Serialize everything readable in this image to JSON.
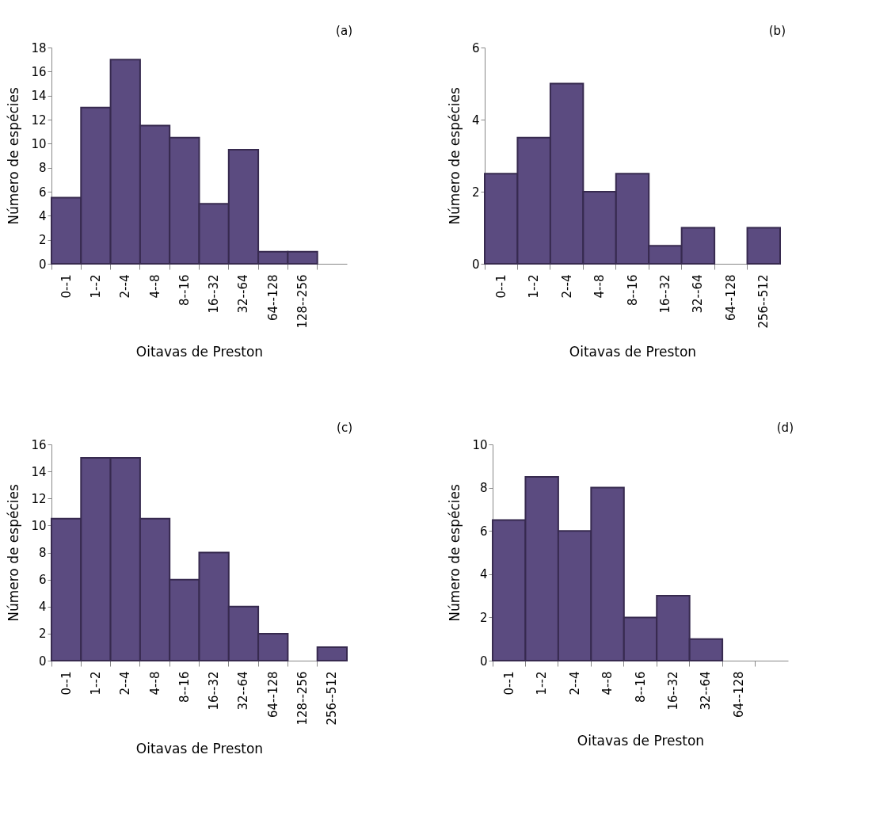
{
  "chart_data": [
    {
      "type": "bar",
      "annotations": [
        "(a)"
      ],
      "xlabel": "Oitavas de Preston",
      "ylabel": "Número de espécies",
      "categories": [
        "0--1",
        "1--2",
        "2--4",
        "4--8",
        "8--16",
        "16--32",
        "32--64",
        "64--128",
        "128--256",
        null
      ],
      "series": [
        {
          "color": "#5b4b80",
          "values": [
            5.5,
            13,
            17,
            11.5,
            10.5,
            5,
            9.5,
            1,
            1,
            null
          ]
        }
      ],
      "ylim": [
        0,
        18
      ],
      "yticks": [
        0,
        2,
        4,
        6,
        8,
        10,
        12,
        14,
        16,
        18
      ],
      "grid": false
    },
    {
      "type": "bar",
      "annotations": [
        "(b)"
      ],
      "xlabel": "Oitavas de Preston",
      "ylabel": "Número de espécies",
      "categories": [
        "0--1",
        "1--2",
        "2--4",
        "4--8",
        "8--16",
        "16--32",
        "32--64",
        "64--128",
        "256--512"
      ],
      "series": [
        {
          "color": "#5b4b80",
          "values": [
            2.5,
            3.5,
            5,
            2,
            2.5,
            0.5,
            1,
            null,
            1
          ]
        }
      ],
      "ylim": [
        0,
        6
      ],
      "yticks": [
        0,
        2,
        4,
        6
      ],
      "grid": false
    },
    {
      "type": "bar",
      "annotations": [
        "(c)"
      ],
      "xlabel": "Oitavas de Preston",
      "ylabel": "Número de espécies",
      "categories": [
        "0--1",
        "1--2",
        "2--4",
        "4--8",
        "8--16",
        "16--32",
        "32--64",
        "64--128",
        "128--256",
        "256--512"
      ],
      "series": [
        {
          "color": "#5b4b80",
          "values": [
            10.5,
            15,
            15,
            10.5,
            6,
            8,
            4,
            2,
            null,
            1
          ]
        }
      ],
      "ylim": [
        0,
        16
      ],
      "yticks": [
        0,
        2,
        4,
        6,
        8,
        10,
        12,
        14,
        16
      ],
      "grid": false
    },
    {
      "type": "bar",
      "annotations": [
        "(d)"
      ],
      "xlabel": "Oitavas de Preston",
      "ylabel": "Número de espécies",
      "categories": [
        "0--1",
        "1--2",
        "2--4",
        "4--8",
        "8--16",
        "16--32",
        "32--64",
        "64--128",
        null
      ],
      "series": [
        {
          "color": "#5b4b80",
          "values": [
            6.5,
            8.5,
            6,
            8,
            2,
            3,
            1,
            null,
            null
          ]
        }
      ],
      "ylim": [
        0,
        10
      ],
      "yticks": [
        0,
        2,
        4,
        6,
        8,
        10
      ],
      "grid": false
    }
  ]
}
